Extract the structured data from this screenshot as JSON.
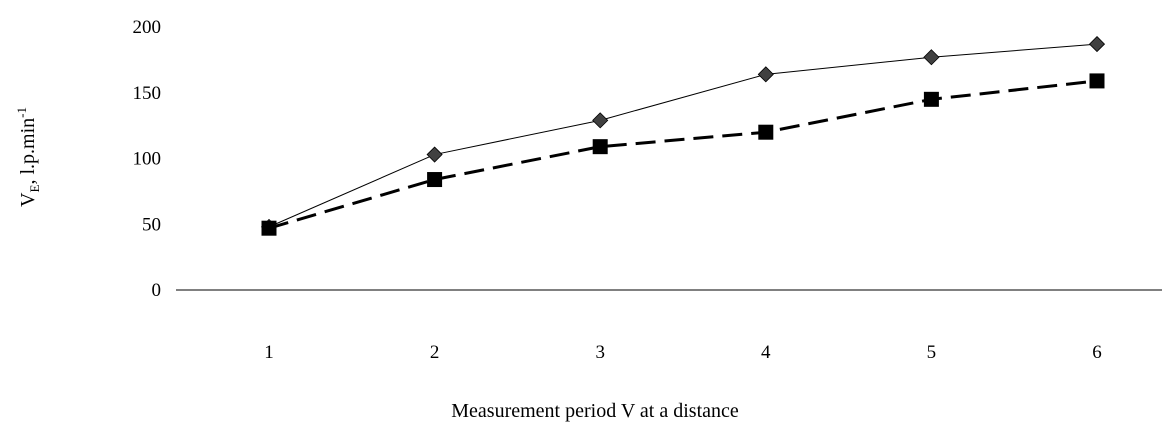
{
  "chart_data": {
    "type": "line",
    "xlabel": "Measurement period V at a distance",
    "ylabel": {
      "main": "V",
      "sub": "E",
      "rest": ", l.p.min",
      "sup": "-1"
    },
    "x": [
      1,
      2,
      3,
      4,
      5,
      6
    ],
    "x_tick_labels": [
      "1",
      "2",
      "3",
      "4",
      "5",
      "6"
    ],
    "y_ticks": [
      0,
      50,
      100,
      150,
      200
    ],
    "y_tick_labels": [
      "0",
      "50",
      "100",
      "150",
      "200"
    ],
    "ylim": [
      0,
      200
    ],
    "grid": false,
    "series": [
      {
        "values": [
          48,
          103,
          129,
          164,
          177,
          187
        ],
        "marker": "diamond",
        "line_style": "solid",
        "marker_color": "#404040",
        "line_color": "#000000"
      },
      {
        "values": [
          47,
          84,
          109,
          120,
          145,
          159
        ],
        "marker": "square",
        "line_style": "dashed",
        "marker_color": "#000000",
        "line_color": "#000000"
      }
    ]
  }
}
